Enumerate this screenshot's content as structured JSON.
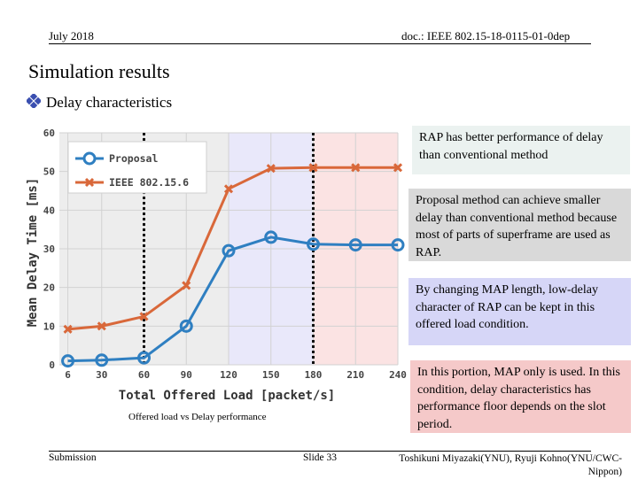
{
  "header": {
    "date": "July 2018",
    "doc_id": "doc.: IEEE 802.15-18-0115-01-0dep"
  },
  "slide": {
    "title": "Simulation results",
    "bullet": "Delay characteristics"
  },
  "chart_data": {
    "type": "line",
    "title": "",
    "xlabel": "Total Offered Load [packet/s]",
    "ylabel": "Mean Delay Time [ms]",
    "categories": [
      "6",
      "30",
      "60",
      "90",
      "120",
      "150",
      "180",
      "210",
      "240"
    ],
    "x": [
      6,
      30,
      60,
      90,
      120,
      150,
      180,
      210,
      240
    ],
    "xlim": [
      0,
      240
    ],
    "ylim": [
      0,
      60
    ],
    "yticks": [
      "0",
      "10",
      "20",
      "30",
      "40",
      "50",
      "60"
    ],
    "grid": true,
    "legend": "top-left",
    "series": [
      {
        "name": "Proposal",
        "color": "#2f7fc1",
        "marker": "circle",
        "values": [
          1.0,
          1.2,
          1.8,
          10.0,
          29.5,
          33.0,
          31.2,
          31.0,
          31.0
        ]
      },
      {
        "name": "IEEE 802.15.6",
        "color": "#d9683a",
        "marker": "x",
        "values": [
          9.2,
          10.0,
          12.5,
          20.5,
          45.5,
          50.8,
          51.0,
          51.0,
          51.0
        ]
      }
    ],
    "vlines": [
      60,
      180
    ],
    "regions": [
      {
        "from": 0,
        "to": 120,
        "color": "#ededed"
      },
      {
        "from": 120,
        "to": 180,
        "color": "#e9e8fa"
      },
      {
        "from": 180,
        "to": 240,
        "color": "#fbe3e3"
      }
    ]
  },
  "callouts": [
    {
      "text": "RAP has better performance of delay than conventional method",
      "bg": "#ebf2f0"
    },
    {
      "text": "Proposal method can achieve smaller delay than conventional method because most of parts of superframe are used as RAP.",
      "bg": "#d9d9d9"
    },
    {
      "text": "By changing MAP length, low-delay character of RAP can be kept in this offered load condition.",
      "bg": "#d6d6f7"
    },
    {
      "text": "In this portion, MAP only is used. In this condition, delay characteristics has performance floor depends on the slot period.",
      "bg": "#f5c9c9"
    }
  ],
  "caption": "Offered load vs Delay performance",
  "footer": {
    "left": "Submission",
    "center": "Slide 33",
    "right": "Toshikuni Miyazaki(YNU), Ryuji Kohno(YNU/CWC-Nippon)"
  }
}
